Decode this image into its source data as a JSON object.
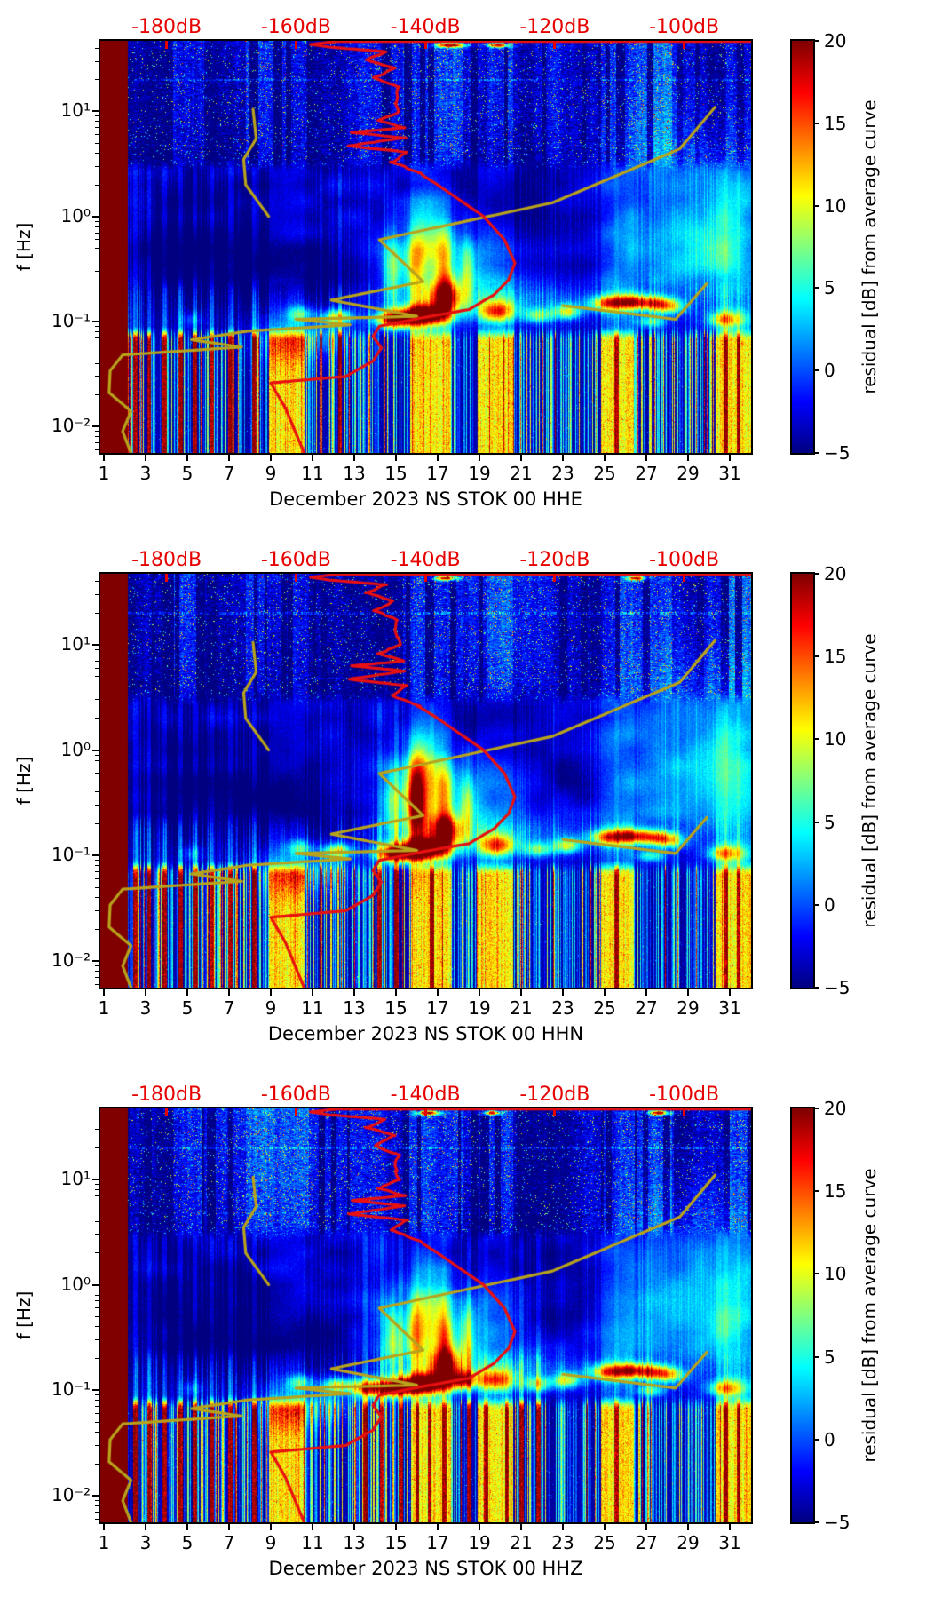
{
  "figure": {
    "background": "#ffffff",
    "description": "Three stacked residual power-spectral-density spectrograms (jet colormap) for station NS STOK 00, channels HHE, HHN, HHZ, December 2023, with red average-PSD curve (top dB axis) and olive reference curve overlays"
  },
  "shared": {
    "ylabel": "f [Hz]",
    "xlabel_days": [
      1,
      3,
      5,
      7,
      9,
      11,
      13,
      15,
      17,
      19,
      21,
      23,
      25,
      27,
      29,
      31
    ],
    "y_tick_labels": [
      "10¹",
      "10⁰",
      "10⁻¹",
      "10⁻²"
    ],
    "y_tick_exponents": [
      1,
      0,
      -1,
      -2
    ],
    "x_range_days": [
      0.83,
      32.02
    ],
    "f_range_hz": [
      0.0056,
      47
    ],
    "top_axis": {
      "labels": [
        "-180dB",
        "-160dB",
        "-140dB",
        "-120dB",
        "-100dB"
      ],
      "db_values": [
        -180,
        -160,
        -140,
        -120,
        -100
      ],
      "color": "#e60000"
    },
    "colorbar": {
      "label": "residual [dB] from average curve",
      "tick_labels": [
        "20",
        "15",
        "10",
        "5",
        "0",
        "−5"
      ],
      "tick_values": [
        20,
        15,
        10,
        5,
        0,
        -5
      ],
      "vmin": -5,
      "vmax": 20,
      "colormap": "jet"
    },
    "colors": {
      "red_curve": "#e81010",
      "yellow_curve": "#b8a31b",
      "top_axis_red": "#e60000",
      "saturated_band": "#8b0000",
      "axis": "#000000"
    },
    "curves": {
      "red_average_day_hz": [
        [
          32.2,
          46.5
        ],
        [
          12.2,
          46.5
        ],
        [
          10.9,
          43.5
        ],
        [
          11.8,
          41
        ],
        [
          14.5,
          37
        ],
        [
          13.6,
          31
        ],
        [
          14.9,
          26
        ],
        [
          14.0,
          21
        ],
        [
          15.1,
          17
        ],
        [
          15.0,
          12
        ],
        [
          15.2,
          10
        ],
        [
          14.2,
          8.2
        ],
        [
          15.4,
          7.0
        ],
        [
          12.9,
          6.3
        ],
        [
          15.4,
          5.6
        ],
        [
          12.7,
          4.7
        ],
        [
          15.5,
          4.1
        ],
        [
          14.8,
          3.3
        ],
        [
          16.1,
          2.6
        ],
        [
          17.0,
          2.0
        ],
        [
          19.2,
          1.0
        ],
        [
          20.2,
          0.6
        ],
        [
          20.7,
          0.36
        ],
        [
          20.4,
          0.25
        ],
        [
          19.7,
          0.18
        ],
        [
          18.5,
          0.13
        ],
        [
          16.2,
          0.108
        ],
        [
          14.2,
          0.09
        ],
        [
          13.9,
          0.072
        ],
        [
          14.3,
          0.056
        ],
        [
          13.9,
          0.042
        ],
        [
          12.6,
          0.03
        ],
        [
          9.0,
          0.026
        ],
        [
          9.7,
          0.015
        ],
        [
          10.6,
          0.0056
        ]
      ],
      "yellow_main_day_hz": [
        [
          2.3,
          0.0056
        ],
        [
          1.9,
          0.009
        ],
        [
          2.3,
          0.014
        ],
        [
          1.25,
          0.021
        ],
        [
          1.3,
          0.034
        ],
        [
          1.9,
          0.048
        ],
        [
          7.6,
          0.057
        ],
        [
          5.2,
          0.067
        ],
        [
          7.9,
          0.081
        ],
        [
          12.8,
          0.093
        ],
        [
          10.2,
          0.105
        ],
        [
          16.0,
          0.112
        ],
        [
          11.9,
          0.16
        ],
        [
          16.3,
          0.24
        ],
        [
          14.2,
          0.6
        ],
        [
          22.5,
          1.35
        ],
        [
          28.6,
          4.4
        ],
        [
          30.3,
          11
        ]
      ],
      "yellow_branch_left_day_hz": [
        [
          8.9,
          1.0
        ],
        [
          7.8,
          2.0
        ],
        [
          7.7,
          3.5
        ],
        [
          8.3,
          5.5
        ],
        [
          8.15,
          10.5
        ]
      ],
      "yellow_branch_right_day_hz": [
        [
          23.0,
          0.142
        ],
        [
          28.4,
          0.105
        ],
        [
          29.9,
          0.23
        ]
      ]
    },
    "texture": {
      "saturated_until_day": 2.12,
      "horizontal_lines_hz": [
        20,
        4.8
      ],
      "yellow_column_day_ranges": [
        [
          8.9,
          10.6
        ],
        [
          15.7,
          17.6
        ],
        [
          18.9,
          20.6
        ],
        [
          24.8,
          26.4
        ],
        [
          30.3,
          32.0
        ]
      ],
      "red_spike_days": [
        2.5,
        3.15,
        3.9,
        4.65,
        5.35,
        6.15,
        7.05,
        8.2,
        25.55,
        30.8,
        31.4
      ],
      "bright_high_day_ranges": [
        [
          4.3,
          5.8
        ],
        [
          7.8,
          10.8
        ],
        [
          15.3,
          18.2
        ],
        [
          19.3,
          20.6
        ],
        [
          24.8,
          28.2
        ],
        [
          30.8,
          32.0
        ]
      ],
      "blobs_day_hz_amp_sd_sf": [
        [
          16.3,
          0.115,
          24,
          0.8,
          0.07
        ],
        [
          14.9,
          0.105,
          20,
          0.65,
          0.06
        ],
        [
          17.4,
          0.17,
          15,
          0.55,
          0.11
        ],
        [
          19.8,
          0.125,
          14,
          0.6,
          0.07
        ],
        [
          12.2,
          0.112,
          12,
          0.5,
          0.05
        ],
        [
          10.4,
          0.12,
          7,
          0.45,
          0.05
        ],
        [
          21.8,
          0.115,
          9,
          0.5,
          0.05
        ],
        [
          23.2,
          0.125,
          11,
          0.45,
          0.05
        ],
        [
          25.1,
          0.15,
          13,
          0.6,
          0.05
        ],
        [
          26.2,
          0.155,
          14,
          0.6,
          0.05
        ],
        [
          27.3,
          0.15,
          13,
          0.6,
          0.05
        ],
        [
          28.1,
          0.14,
          10,
          0.5,
          0.05
        ],
        [
          27.2,
          0.1,
          8,
          0.5,
          0.04
        ],
        [
          30.6,
          0.105,
          8,
          0.5,
          0.05
        ],
        [
          5.2,
          0.105,
          4,
          0.35,
          0.05
        ],
        [
          31.2,
          0.105,
          7,
          0.6,
          0.07
        ],
        [
          14.8,
          0.3,
          8,
          0.3,
          0.28
        ],
        [
          15.9,
          0.35,
          9,
          0.33,
          0.3
        ],
        [
          17.3,
          0.32,
          9,
          0.3,
          0.3
        ],
        [
          18.4,
          0.3,
          7,
          0.25,
          0.25
        ],
        [
          16.6,
          0.6,
          6,
          0.5,
          0.3
        ],
        [
          17,
          0.35,
          5,
          2.6,
          0.28
        ],
        [
          27.5,
          0.4,
          4.5,
          2.2,
          0.33
        ],
        [
          30.8,
          0.5,
          5,
          1.2,
          0.4
        ],
        [
          20.5,
          0.16,
          4,
          3.5,
          0.12
        ],
        [
          9.8,
          0.068,
          5,
          1.2,
          0.15
        ],
        [
          11.8,
          0.072,
          4,
          0.8,
          0.12
        ],
        [
          29,
          2.5,
          3,
          2.5,
          0.45
        ],
        [
          6,
          0.33,
          -3,
          3,
          0.28
        ],
        [
          11.5,
          0.3,
          -2.5,
          2.5,
          0.22
        ],
        [
          3.5,
          0.8,
          -1.5,
          2,
          0.4
        ],
        [
          20,
          1.7,
          -1.8,
          2.5,
          0.35
        ],
        [
          23.5,
          0.5,
          -2,
          1.8,
          0.3
        ],
        [
          8,
          1.5,
          -1.5,
          3,
          0.5
        ]
      ]
    }
  },
  "chart_data": [
    {
      "type": "heatmap",
      "title": "December 2023 NS STOK 00 HHE",
      "station": "NS STOK 00",
      "channel": "HHE",
      "month": "December 2023",
      "seed": 101,
      "extra_red_spike_days": [
        12.3
      ],
      "extra_blobs": [],
      "top_red_dashes_day_hw": [
        [
          17.6,
          0.5
        ],
        [
          19.9,
          0.35
        ]
      ]
    },
    {
      "type": "heatmap",
      "title": "December 2023 NS STOK 00 HHN",
      "station": "NS STOK 00",
      "channel": "HHN",
      "month": "December 2023",
      "seed": 202,
      "extra_red_spike_days": [
        14.2,
        15.0,
        16.7
      ],
      "extra_blobs": [
        [
          16.0,
          0.33,
          12,
          0.4,
          0.35
        ]
      ],
      "top_red_dashes_day_hw": [
        [
          17.4,
          0.4
        ],
        [
          26.5,
          0.3
        ]
      ]
    },
    {
      "type": "heatmap",
      "title": "December 2023 NS STOK 00 HHZ",
      "station": "NS STOK 00",
      "channel": "HHZ",
      "month": "December 2023",
      "seed": 303,
      "extra_red_spike_days": [
        13.5,
        14.3,
        15.2,
        16.0,
        16.6,
        17.3,
        18.5,
        19.3,
        20.3,
        21.0,
        21.8
      ],
      "extra_blobs": [
        [
          13.6,
          0.105,
          18,
          0.5,
          0.06
        ],
        [
          18.2,
          0.125,
          15,
          0.5,
          0.06
        ]
      ],
      "top_red_dashes_day_hw": [
        [
          16.5,
          0.4
        ],
        [
          19.6,
          0.3
        ],
        [
          27.6,
          0.35
        ]
      ]
    }
  ]
}
